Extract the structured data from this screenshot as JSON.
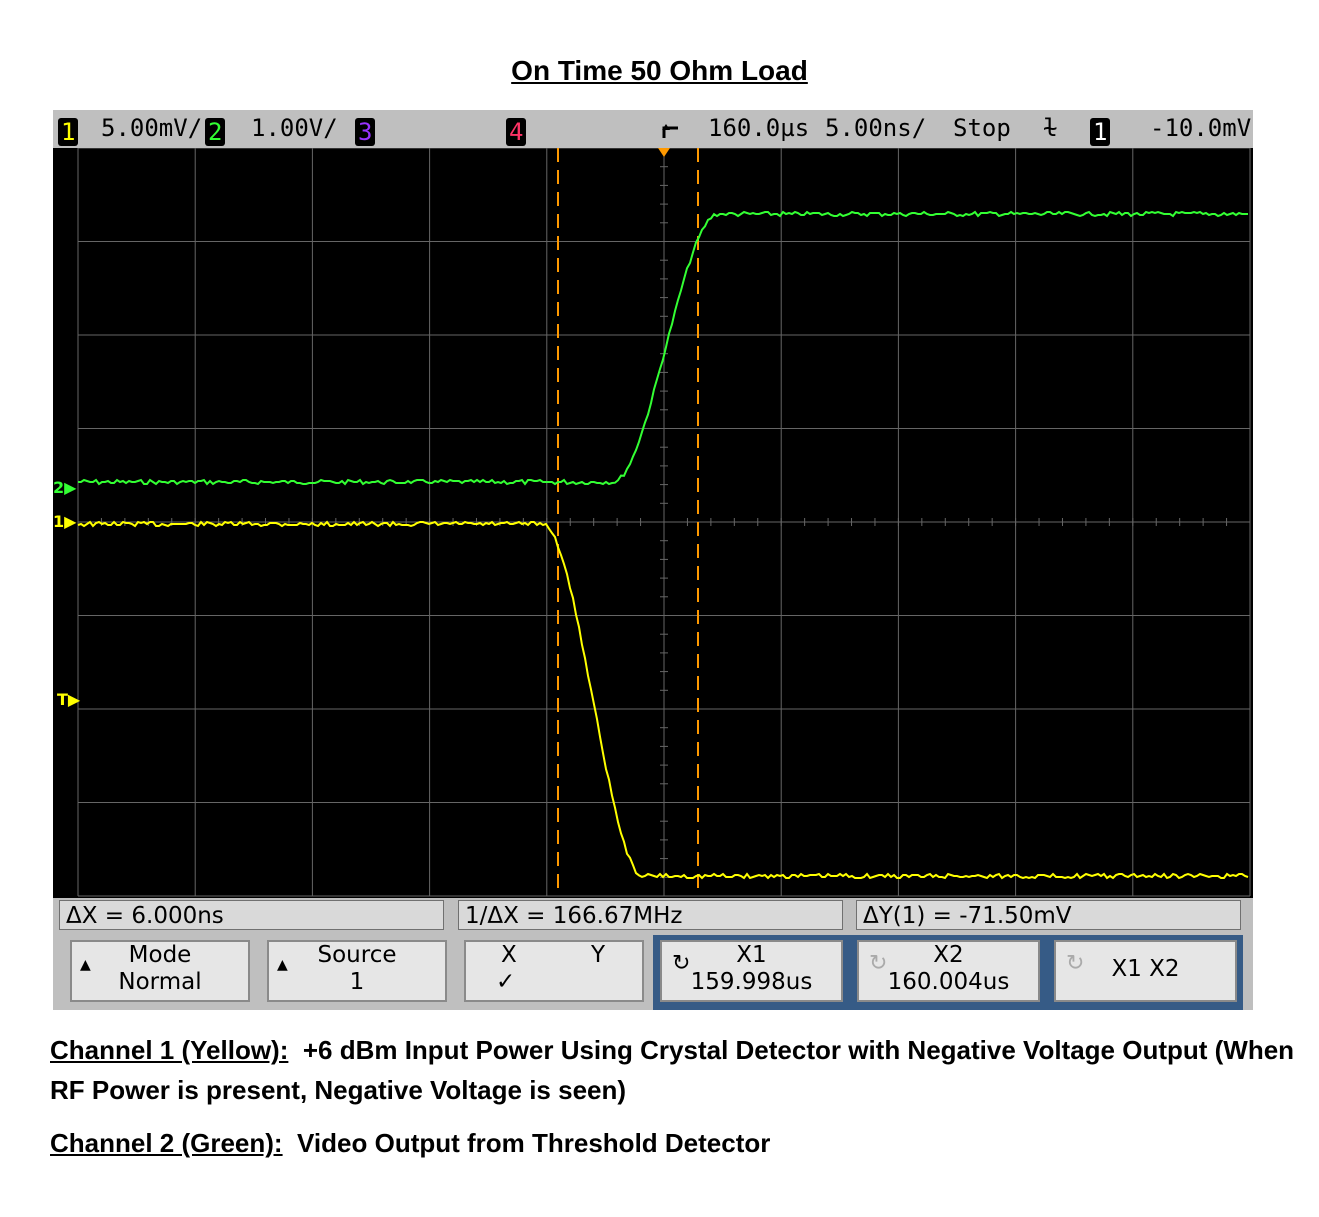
{
  "title": "On Time 50 Ohm Load",
  "topbar": {
    "ch1_num": "1",
    "ch1_scale": "5.00mV/",
    "ch2_num": "2",
    "ch2_scale": "1.00V/",
    "ch3_num": "3",
    "ch4_num": "4",
    "delay": "160.0µs",
    "timebase": "5.00ns/",
    "run_state": "Stop",
    "trigger_slope": "ɫ",
    "trig_src": "1",
    "trig_level": "-10.0mV"
  },
  "markers": {
    "ch2": "2",
    "ch1": "1",
    "trigger": "T"
  },
  "measurements": {
    "dx": "ΔX = 6.000ns",
    "inv_dx": "1/ΔX = 166.67MHz",
    "dy": "ΔY(1) = -71.50mV"
  },
  "softkeys": {
    "mode": {
      "label": "Mode",
      "value": "Normal"
    },
    "source": {
      "label": "Source",
      "value": "1"
    },
    "xy": {
      "x": "X",
      "y": "Y",
      "check": "✓"
    },
    "x1": {
      "label": "X1",
      "value": "159.998us"
    },
    "x2": {
      "label": "X2",
      "value": "160.004us"
    },
    "x1x2": {
      "label": "X1 X2"
    }
  },
  "captions": {
    "ch1_label": "Channel 1 (Yellow):",
    "ch1_text": "+6 dBm Input Power Using Crystal Detector with Negative Voltage Output (When RF Power is present, Negative Voltage is seen)",
    "ch2_label": "Channel 2 (Green):",
    "ch2_text": "Video Output from Threshold Detector"
  },
  "colors": {
    "ch1": "#ffff00",
    "ch2": "#33ff33",
    "ch3": "#9933ff",
    "ch4": "#ff3366",
    "cursor": "#ff9900",
    "grid": "#666666",
    "softkey_group": "#365b86"
  }
}
